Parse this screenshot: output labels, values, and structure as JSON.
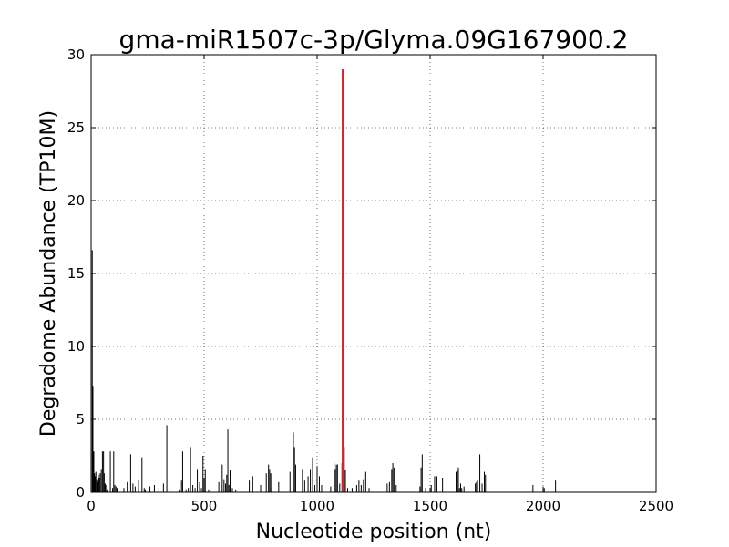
{
  "chart_data": {
    "type": "bar",
    "title": "gma-miR1507c-3p/Glyma.09G167900.2",
    "xlabel": "Nucleotide position (nt)",
    "ylabel": "Degradome Abundance (TP10M)",
    "xlim": [
      0,
      2500
    ],
    "ylim": [
      0,
      30
    ],
    "xticks": [
      0,
      500,
      1000,
      1500,
      2000,
      2500
    ],
    "yticks": [
      0,
      5,
      10,
      15,
      20,
      25,
      30
    ],
    "grid": true,
    "series": [
      {
        "role": "background",
        "color": "#000000",
        "x": [
          5,
          8,
          12,
          15,
          18,
          21,
          25,
          28,
          32,
          36,
          40,
          45,
          50,
          55,
          58,
          62,
          65,
          70,
          85,
          95,
          100,
          105,
          110,
          115,
          118,
          145,
          160,
          175,
          185,
          195,
          210,
          225,
          235,
          240,
          260,
          280,
          300,
          320,
          335,
          345,
          390,
          400,
          405,
          420,
          430,
          440,
          450,
          460,
          470,
          480,
          488,
          495,
          500,
          505,
          520,
          565,
          575,
          580,
          588,
          595,
          600,
          605,
          610,
          615,
          625,
          640,
          700,
          715,
          750,
          775,
          785,
          790,
          795,
          800,
          830,
          880,
          895,
          900,
          905,
          935,
          945,
          960,
          970,
          980,
          990,
          1000,
          1010,
          1020,
          1060,
          1075,
          1080,
          1085,
          1090,
          1100,
          1110,
          1120,
          1125,
          1135,
          1155,
          1175,
          1185,
          1195,
          1205,
          1215,
          1230,
          1310,
          1320,
          1330,
          1335,
          1340,
          1350,
          1455,
          1460,
          1465,
          1480,
          1505,
          1520,
          1530,
          1555,
          1615,
          1620,
          1625,
          1630,
          1635,
          1640,
          1650,
          1700,
          1705,
          1710,
          1720,
          1730,
          1740,
          1745,
          1955,
          2000,
          2005,
          2055
        ],
        "values": [
          16.6,
          7.3,
          2.8,
          1.3,
          1.1,
          1.4,
          0.9,
          0.7,
          1.2,
          1.0,
          1.3,
          1.6,
          2.8,
          2.8,
          1.3,
          0.6,
          0.5,
          0.2,
          2.8,
          0.3,
          2.8,
          0.5,
          0.4,
          0.3,
          0.2,
          0.3,
          0.7,
          2.6,
          0.6,
          0.4,
          0.8,
          2.4,
          0.3,
          0.2,
          0.4,
          0.5,
          0.3,
          0.6,
          4.6,
          0.3,
          0.2,
          0.8,
          2.8,
          0.2,
          0.3,
          3.1,
          0.5,
          0.3,
          1.6,
          0.7,
          0.3,
          2.5,
          1.0,
          1.6,
          0.2,
          0.7,
          0.5,
          1.9,
          0.9,
          0.6,
          1.2,
          4.3,
          0.5,
          1.5,
          0.3,
          0.2,
          0.8,
          1.1,
          0.5,
          1.3,
          1.9,
          1.6,
          1.3,
          0.3,
          0.7,
          1.4,
          4.1,
          3.1,
          1.9,
          1.6,
          0.8,
          1.1,
          1.6,
          2.4,
          0.5,
          1.8,
          1.1,
          0.5,
          0.4,
          2.1,
          1.6,
          1.9,
          1.9,
          0.6,
          2.0,
          3.1,
          1.5,
          0.3,
          0.3,
          0.5,
          0.8,
          0.5,
          0.9,
          1.4,
          0.3,
          0.6,
          0.7,
          1.6,
          2.0,
          1.7,
          0.5,
          0.4,
          1.7,
          2.6,
          0.3,
          0.5,
          1.1,
          1.1,
          1.0,
          1.4,
          1.5,
          1.7,
          0.3,
          0.6,
          0.3,
          0.4,
          0.6,
          0.7,
          0.8,
          2.6,
          0.6,
          1.4,
          1.2,
          0.5,
          0.4,
          0.3,
          0.8
        ]
      },
      {
        "role": "target",
        "color": "#d62728",
        "x": [
          1113
        ],
        "values": [
          29.0
        ]
      }
    ]
  }
}
